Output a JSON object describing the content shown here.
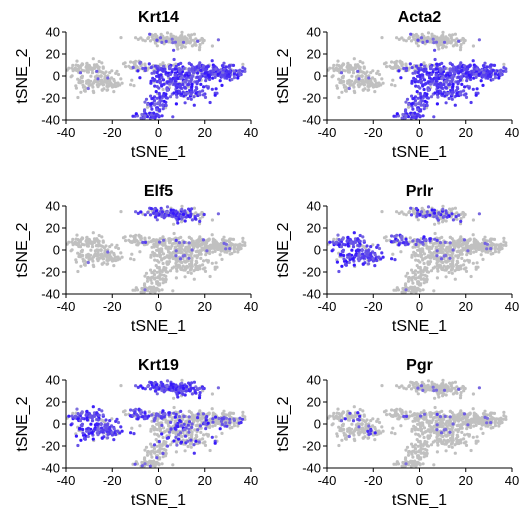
{
  "chart_data": [
    {
      "type": "scatter",
      "title": "Krt14",
      "xlabel": "tSNE_1",
      "ylabel": "tSNE_2",
      "xlim": [
        -40,
        40
      ],
      "ylim": [
        -40,
        40
      ],
      "xticks": [
        -40,
        -20,
        0,
        20,
        40
      ],
      "yticks": [
        -40,
        -20,
        0,
        20,
        40
      ],
      "xtick_labels": [
        "-40",
        "-20",
        "0",
        "20",
        "40"
      ],
      "ytick_labels": [
        "-40",
        "-20",
        "0",
        "20",
        "40"
      ],
      "colors": {
        "low": "#c0c0c0",
        "high": "#2e0fff"
      },
      "expression": {
        "top_cluster": 0.05,
        "left_cluster": 0.05,
        "mid_cluster": 0.2,
        "right_cluster": 0.9,
        "bottom_arm": 0.9
      }
    },
    {
      "type": "scatter",
      "title": "Acta2",
      "xlabel": "tSNE_1",
      "ylabel": "tSNE_2",
      "xlim": [
        -40,
        40
      ],
      "ylim": [
        -40,
        40
      ],
      "xticks": [
        -40,
        -20,
        0,
        20,
        40
      ],
      "yticks": [
        -40,
        -20,
        0,
        20,
        40
      ],
      "xtick_labels": [
        "-40",
        "-20",
        "0",
        "20",
        "40"
      ],
      "ytick_labels": [
        "-40",
        "-20",
        "0",
        "20",
        "40"
      ],
      "colors": {
        "low": "#c0c0c0",
        "high": "#2e0fff"
      },
      "expression": {
        "top_cluster": 0.05,
        "left_cluster": 0.05,
        "mid_cluster": 0.15,
        "right_cluster": 0.95,
        "bottom_arm": 0.95
      }
    },
    {
      "type": "scatter",
      "title": "Elf5",
      "xlabel": "tSNE_1",
      "ylabel": "tSNE_2",
      "xlim": [
        -40,
        40
      ],
      "ylim": [
        -40,
        40
      ],
      "xticks": [
        -40,
        -20,
        0,
        20,
        40
      ],
      "yticks": [
        -40,
        -20,
        0,
        20,
        40
      ],
      "xtick_labels": [
        "-40",
        "-20",
        "0",
        "20",
        "40"
      ],
      "ytick_labels": [
        "-40",
        "-20",
        "0",
        "20",
        "40"
      ],
      "colors": {
        "low": "#c0c0c0",
        "high": "#2e0fff"
      },
      "expression": {
        "top_cluster": 0.55,
        "left_cluster": 0.02,
        "mid_cluster": 0.1,
        "right_cluster": 0.03,
        "bottom_arm": 0.02
      }
    },
    {
      "type": "scatter",
      "title": "Prlr",
      "xlabel": "tSNE_1",
      "ylabel": "tSNE_2",
      "xlim": [
        -40,
        40
      ],
      "ylim": [
        -40,
        40
      ],
      "xticks": [
        -40,
        -20,
        0,
        20,
        40
      ],
      "yticks": [
        -40,
        -20,
        0,
        20,
        40
      ],
      "xtick_labels": [
        "-40",
        "-20",
        "0",
        "20",
        "40"
      ],
      "ytick_labels": [
        "-40",
        "-20",
        "0",
        "20",
        "40"
      ],
      "colors": {
        "low": "#c0c0c0",
        "high": "#2e0fff"
      },
      "expression": {
        "top_cluster": 0.2,
        "left_cluster": 0.9,
        "mid_cluster": 0.6,
        "right_cluster": 0.03,
        "bottom_arm": 0.02
      }
    },
    {
      "type": "scatter",
      "title": "Krt19",
      "xlabel": "tSNE_1",
      "ylabel": "tSNE_2",
      "xlim": [
        -40,
        40
      ],
      "ylim": [
        -40,
        40
      ],
      "xticks": [
        -40,
        -20,
        0,
        20,
        40
      ],
      "yticks": [
        -40,
        -20,
        0,
        20,
        40
      ],
      "xtick_labels": [
        "-40",
        "-20",
        "0",
        "20",
        "40"
      ],
      "ytick_labels": [
        "-40",
        "-20",
        "0",
        "20",
        "40"
      ],
      "colors": {
        "low": "#c0c0c0",
        "high": "#2e0fff"
      },
      "expression": {
        "top_cluster": 0.85,
        "left_cluster": 0.9,
        "mid_cluster": 0.8,
        "right_cluster": 0.2,
        "bottom_arm": 0.05
      }
    },
    {
      "type": "scatter",
      "title": "Pgr",
      "xlabel": "tSNE_1",
      "ylabel": "tSNE_2",
      "xlim": [
        -40,
        40
      ],
      "ylim": [
        -40,
        40
      ],
      "xticks": [
        -40,
        -20,
        0,
        20,
        40
      ],
      "yticks": [
        -40,
        -20,
        0,
        20,
        40
      ],
      "xtick_labels": [
        "-40",
        "-20",
        "0",
        "20",
        "40"
      ],
      "ytick_labels": [
        "-40",
        "-20",
        "0",
        "20",
        "40"
      ],
      "colors": {
        "low": "#c0c0c0",
        "high": "#2e0fff"
      },
      "expression": {
        "top_cluster": 0.03,
        "left_cluster": 0.12,
        "mid_cluster": 0.1,
        "right_cluster": 0.03,
        "bottom_arm": 0.02
      }
    }
  ]
}
